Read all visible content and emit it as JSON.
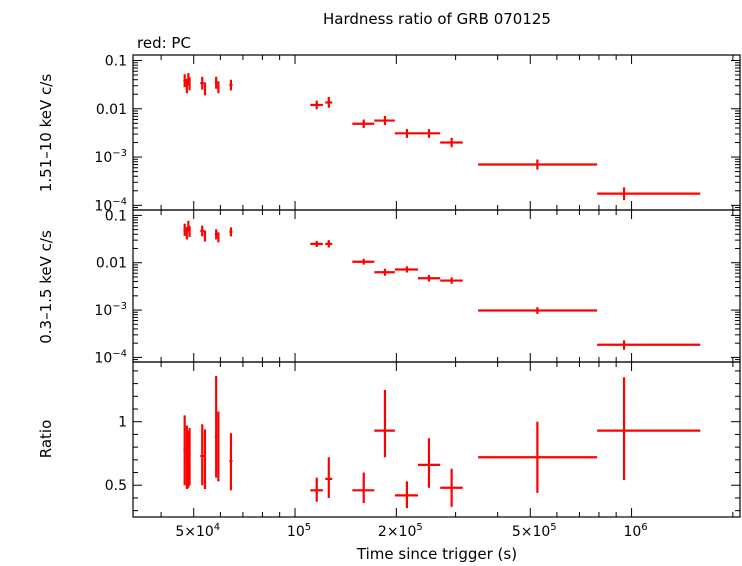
{
  "chart_data": {
    "type": "scatter",
    "title": "Hardness ratio of GRB 070125",
    "subtitle": "red: PC",
    "xlabel": "Time since trigger (s)",
    "x_scale": "log",
    "xlim": [
      33000,
      2100000
    ],
    "series_color": "#ff0000",
    "x_ticks": [
      {
        "value": 50000,
        "mant": "5×10",
        "exp": "4"
      },
      {
        "value": 100000,
        "mant": "10",
        "exp": "5"
      },
      {
        "value": 200000,
        "mant": "2×10",
        "exp": "5"
      },
      {
        "value": 500000,
        "mant": "5×10",
        "exp": "5"
      },
      {
        "value": 1000000,
        "mant": "10",
        "exp": "6"
      }
    ],
    "panels": [
      {
        "id": "hard",
        "ylabel": "1.51–10 keV c/s",
        "y_scale": "log",
        "ylim": [
          8e-05,
          0.13
        ],
        "y_ticks": [
          {
            "value": 0.1,
            "text": "0.1"
          },
          {
            "value": 0.01,
            "text": "0.01"
          },
          {
            "value": 0.001,
            "mant": "10",
            "exp": "−3"
          },
          {
            "value": 0.0001,
            "mant": "10",
            "exp": "−4"
          }
        ],
        "points": [
          {
            "x": 47000,
            "xlo": 46600,
            "xhi": 47400,
            "y": 0.038,
            "ylo": 0.028,
            "yhi": 0.052
          },
          {
            "x": 47700,
            "xlo": 47400,
            "xhi": 48000,
            "y": 0.03,
            "ylo": 0.021,
            "yhi": 0.042
          },
          {
            "x": 48200,
            "xlo": 48000,
            "xhi": 48400,
            "y": 0.042,
            "ylo": 0.031,
            "yhi": 0.055
          },
          {
            "x": 48600,
            "xlo": 48400,
            "xhi": 48800,
            "y": 0.033,
            "ylo": 0.024,
            "yhi": 0.045
          },
          {
            "x": 53000,
            "xlo": 52300,
            "xhi": 53700,
            "y": 0.034,
            "ylo": 0.025,
            "yhi": 0.046
          },
          {
            "x": 54000,
            "xlo": 53700,
            "xhi": 54300,
            "y": 0.026,
            "ylo": 0.019,
            "yhi": 0.035
          },
          {
            "x": 58300,
            "xlo": 57800,
            "xhi": 58800,
            "y": 0.035,
            "ylo": 0.026,
            "yhi": 0.046
          },
          {
            "x": 59200,
            "xlo": 58800,
            "xhi": 59600,
            "y": 0.028,
            "ylo": 0.021,
            "yhi": 0.037
          },
          {
            "x": 64500,
            "xlo": 63800,
            "xhi": 65200,
            "y": 0.031,
            "ylo": 0.024,
            "yhi": 0.04
          },
          {
            "x": 116000,
            "xlo": 111000,
            "xhi": 121000,
            "y": 0.012,
            "ylo": 0.0098,
            "yhi": 0.0148
          },
          {
            "x": 126000,
            "xlo": 123000,
            "xhi": 129000,
            "y": 0.0135,
            "ylo": 0.0105,
            "yhi": 0.0175
          },
          {
            "x": 160000,
            "xlo": 148000,
            "xhi": 172000,
            "y": 0.0049,
            "ylo": 0.004,
            "yhi": 0.006
          },
          {
            "x": 185000,
            "xlo": 172000,
            "xhi": 198000,
            "y": 0.0057,
            "ylo": 0.0046,
            "yhi": 0.0071
          },
          {
            "x": 215000,
            "xlo": 198000,
            "xhi": 232000,
            "y": 0.0031,
            "ylo": 0.0025,
            "yhi": 0.0038
          },
          {
            "x": 250000,
            "xlo": 232000,
            "xhi": 270000,
            "y": 0.0031,
            "ylo": 0.0025,
            "yhi": 0.0038
          },
          {
            "x": 292000,
            "xlo": 270000,
            "xhi": 315000,
            "y": 0.002,
            "ylo": 0.0016,
            "yhi": 0.0025
          },
          {
            "x": 525000,
            "xlo": 350000,
            "xhi": 790000,
            "y": 0.0007,
            "ylo": 0.00055,
            "yhi": 0.00089
          },
          {
            "x": 950000,
            "xlo": 790000,
            "xhi": 1600000,
            "y": 0.000175,
            "ylo": 0.000128,
            "yhi": 0.000235
          }
        ]
      },
      {
        "id": "soft",
        "ylabel": "0.3–1.5 keV c/s",
        "y_scale": "log",
        "ylim": [
          8e-05,
          0.13
        ],
        "y_ticks": [
          {
            "value": 0.1,
            "text": "0.1"
          },
          {
            "value": 0.01,
            "text": "0.01"
          },
          {
            "value": 0.001,
            "mant": "10",
            "exp": "−3"
          },
          {
            "value": 0.0001,
            "mant": "10",
            "exp": "−4"
          }
        ],
        "points": [
          {
            "x": 47000,
            "xlo": 46600,
            "xhi": 47400,
            "y": 0.05,
            "ylo": 0.037,
            "yhi": 0.067
          },
          {
            "x": 47700,
            "xlo": 47400,
            "xhi": 48000,
            "y": 0.042,
            "ylo": 0.031,
            "yhi": 0.057
          },
          {
            "x": 48200,
            "xlo": 48000,
            "xhi": 48400,
            "y": 0.06,
            "ylo": 0.045,
            "yhi": 0.077
          },
          {
            "x": 48600,
            "xlo": 48400,
            "xhi": 48800,
            "y": 0.046,
            "ylo": 0.035,
            "yhi": 0.06
          },
          {
            "x": 53000,
            "xlo": 52300,
            "xhi": 53700,
            "y": 0.047,
            "ylo": 0.036,
            "yhi": 0.061
          },
          {
            "x": 54000,
            "xlo": 53700,
            "xhi": 54300,
            "y": 0.037,
            "ylo": 0.028,
            "yhi": 0.048
          },
          {
            "x": 58300,
            "xlo": 57800,
            "xhi": 58800,
            "y": 0.04,
            "ylo": 0.031,
            "yhi": 0.051
          },
          {
            "x": 59200,
            "xlo": 58800,
            "xhi": 59600,
            "y": 0.035,
            "ylo": 0.027,
            "yhi": 0.044
          },
          {
            "x": 64500,
            "xlo": 63800,
            "xhi": 65200,
            "y": 0.045,
            "ylo": 0.036,
            "yhi": 0.056
          },
          {
            "x": 116000,
            "xlo": 111000,
            "xhi": 121000,
            "y": 0.025,
            "ylo": 0.0215,
            "yhi": 0.029
          },
          {
            "x": 126000,
            "xlo": 123000,
            "xhi": 129000,
            "y": 0.025,
            "ylo": 0.021,
            "yhi": 0.03
          },
          {
            "x": 160000,
            "xlo": 148000,
            "xhi": 172000,
            "y": 0.0105,
            "ylo": 0.0091,
            "yhi": 0.0121
          },
          {
            "x": 185000,
            "xlo": 172000,
            "xhi": 198000,
            "y": 0.0063,
            "ylo": 0.0053,
            "yhi": 0.0075
          },
          {
            "x": 215000,
            "xlo": 198000,
            "xhi": 232000,
            "y": 0.0072,
            "ylo": 0.0062,
            "yhi": 0.0084
          },
          {
            "x": 250000,
            "xlo": 232000,
            "xhi": 270000,
            "y": 0.0047,
            "ylo": 0.004,
            "yhi": 0.0055
          },
          {
            "x": 292000,
            "xlo": 270000,
            "xhi": 315000,
            "y": 0.0042,
            "ylo": 0.0036,
            "yhi": 0.0049
          },
          {
            "x": 525000,
            "xlo": 350000,
            "xhi": 790000,
            "y": 0.00098,
            "ylo": 0.00083,
            "yhi": 0.00115
          },
          {
            "x": 950000,
            "xlo": 790000,
            "xhi": 1600000,
            "y": 0.000185,
            "ylo": 0.000145,
            "yhi": 0.00023
          }
        ]
      },
      {
        "id": "ratio",
        "ylabel": "Ratio",
        "y_scale": "linear",
        "ylim": [
          0.25,
          1.47
        ],
        "y_ticks": [
          {
            "value": 1,
            "text": "1"
          },
          {
            "value": 0.5,
            "text": "0.5"
          }
        ],
        "points": [
          {
            "x": 47000,
            "xlo": 46600,
            "xhi": 47400,
            "y": 0.78,
            "ylo": 0.5,
            "yhi": 1.05
          },
          {
            "x": 47700,
            "xlo": 47400,
            "xhi": 48000,
            "y": 0.72,
            "ylo": 0.47,
            "yhi": 0.97
          },
          {
            "x": 48200,
            "xlo": 48000,
            "xhi": 48400,
            "y": 0.7,
            "ylo": 0.48,
            "yhi": 0.93
          },
          {
            "x": 48600,
            "xlo": 48400,
            "xhi": 48800,
            "y": 0.72,
            "ylo": 0.5,
            "yhi": 0.95
          },
          {
            "x": 53000,
            "xlo": 52300,
            "xhi": 53700,
            "y": 0.73,
            "ylo": 0.5,
            "yhi": 0.98
          },
          {
            "x": 54000,
            "xlo": 53700,
            "xhi": 54300,
            "y": 0.7,
            "ylo": 0.47,
            "yhi": 0.94
          },
          {
            "x": 58300,
            "xlo": 57800,
            "xhi": 58800,
            "y": 0.88,
            "ylo": 0.56,
            "yhi": 1.36
          },
          {
            "x": 59200,
            "xlo": 58800,
            "xhi": 59600,
            "y": 0.82,
            "ylo": 0.53,
            "yhi": 1.08
          },
          {
            "x": 64500,
            "xlo": 63800,
            "xhi": 65200,
            "y": 0.69,
            "ylo": 0.46,
            "yhi": 0.91
          },
          {
            "x": 116000,
            "xlo": 111000,
            "xhi": 121000,
            "y": 0.46,
            "ylo": 0.37,
            "yhi": 0.56
          },
          {
            "x": 126000,
            "xlo": 123000,
            "xhi": 129000,
            "y": 0.55,
            "ylo": 0.4,
            "yhi": 0.72
          },
          {
            "x": 160000,
            "xlo": 148000,
            "xhi": 172000,
            "y": 0.46,
            "ylo": 0.36,
            "yhi": 0.6
          },
          {
            "x": 185000,
            "xlo": 172000,
            "xhi": 198000,
            "y": 0.93,
            "ylo": 0.72,
            "yhi": 1.25
          },
          {
            "x": 215000,
            "xlo": 198000,
            "xhi": 232000,
            "y": 0.42,
            "ylo": 0.32,
            "yhi": 0.53
          },
          {
            "x": 250000,
            "xlo": 232000,
            "xhi": 270000,
            "y": 0.66,
            "ylo": 0.48,
            "yhi": 0.87
          },
          {
            "x": 292000,
            "xlo": 270000,
            "xhi": 315000,
            "y": 0.48,
            "ylo": 0.33,
            "yhi": 0.63
          },
          {
            "x": 525000,
            "xlo": 350000,
            "xhi": 790000,
            "y": 0.72,
            "ylo": 0.44,
            "yhi": 1.0
          },
          {
            "x": 950000,
            "xlo": 790000,
            "xhi": 1600000,
            "y": 0.93,
            "ylo": 0.54,
            "yhi": 1.35
          }
        ]
      }
    ]
  }
}
